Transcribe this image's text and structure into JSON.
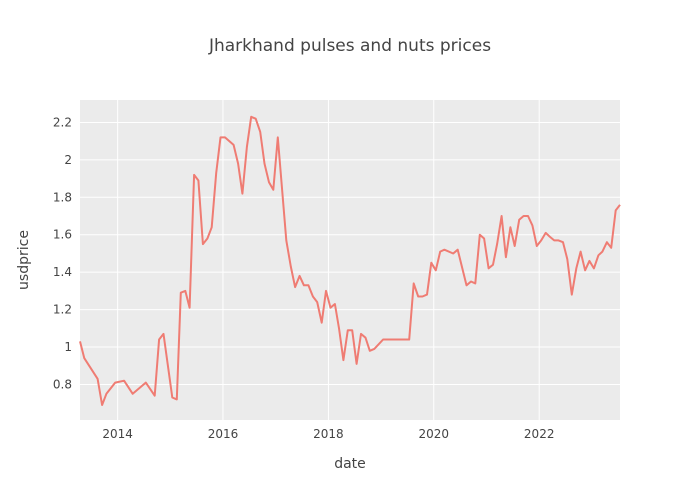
{
  "chart_data": {
    "type": "line",
    "title": "Jharkhand pulses and nuts prices",
    "xlabel": "date",
    "ylabel": "usdprice",
    "xlim": [
      "2013-04-15",
      "2023-07-15"
    ],
    "ylim": [
      0.61,
      2.32
    ],
    "x_ticks": [
      "2014",
      "2016",
      "2018",
      "2020",
      "2022"
    ],
    "y_ticks": [
      "0.8",
      "1",
      "1.2",
      "1.4",
      "1.6",
      "1.8",
      "2",
      "2.2"
    ],
    "grid": true,
    "legend": "none",
    "colors": {
      "line": "#ef7c73",
      "plot_bg": "#ebebeb",
      "grid": "#ffffff"
    },
    "series": [
      {
        "x": [
          "2013-04-15",
          "2013-05-15",
          "2013-08-15",
          "2013-09-15",
          "2013-10-15",
          "2013-12-15",
          "2014-02-15",
          "2014-04-15",
          "2014-07-15",
          "2014-09-15",
          "2014-10-15",
          "2014-11-15",
          "2015-01-15",
          "2015-02-15",
          "2015-03-15",
          "2015-04-15",
          "2015-05-15",
          "2015-06-15",
          "2015-07-15",
          "2015-08-15",
          "2015-09-15",
          "2015-10-15",
          "2015-11-15",
          "2015-12-15",
          "2016-01-15",
          "2016-03-15",
          "2016-04-15",
          "2016-05-15",
          "2016-06-15",
          "2016-07-15",
          "2016-08-15",
          "2016-09-15",
          "2016-10-15",
          "2016-11-15",
          "2016-12-15",
          "2017-01-15",
          "2017-03-15",
          "2017-04-15",
          "2017-05-15",
          "2017-06-15",
          "2017-07-15",
          "2017-08-15",
          "2017-09-15",
          "2017-10-15",
          "2017-11-15",
          "2017-12-15",
          "2018-01-15",
          "2018-02-15",
          "2018-03-15",
          "2018-04-15",
          "2018-05-15",
          "2018-06-15",
          "2018-07-15",
          "2018-08-15",
          "2018-09-15",
          "2018-10-15",
          "2018-11-15",
          "2019-01-15",
          "2019-07-15",
          "2019-08-15",
          "2019-09-15",
          "2019-10-15",
          "2019-11-15",
          "2019-12-15",
          "2020-01-15",
          "2020-02-15",
          "2020-03-15",
          "2020-05-15",
          "2020-06-15",
          "2020-08-15",
          "2020-09-15",
          "2020-10-15",
          "2020-11-15",
          "2020-12-15",
          "2021-01-15",
          "2021-02-15",
          "2021-03-15",
          "2021-04-15",
          "2021-05-15",
          "2021-06-15",
          "2021-07-15",
          "2021-08-15",
          "2021-09-15",
          "2021-10-15",
          "2021-11-15",
          "2021-12-15",
          "2022-01-15",
          "2022-02-15",
          "2022-03-15",
          "2022-04-15",
          "2022-05-15",
          "2022-06-15",
          "2022-07-15",
          "2022-08-15",
          "2022-09-15",
          "2022-10-15",
          "2022-11-15",
          "2022-12-15",
          "2023-01-15",
          "2023-02-15",
          "2023-03-15",
          "2023-04-15",
          "2023-05-15",
          "2023-06-15",
          "2023-07-15"
        ],
        "y": [
          1.03,
          0.94,
          0.83,
          0.69,
          0.75,
          0.81,
          0.82,
          0.75,
          0.81,
          0.74,
          1.04,
          1.07,
          0.73,
          0.72,
          1.29,
          1.3,
          1.21,
          1.92,
          1.89,
          1.55,
          1.58,
          1.64,
          1.93,
          2.12,
          2.12,
          2.08,
          1.98,
          1.82,
          2.07,
          2.23,
          2.22,
          2.15,
          1.98,
          1.88,
          1.84,
          2.12,
          1.57,
          1.43,
          1.32,
          1.38,
          1.33,
          1.33,
          1.27,
          1.24,
          1.13,
          1.3,
          1.21,
          1.23,
          1.1,
          0.93,
          1.09,
          1.09,
          0.91,
          1.07,
          1.05,
          0.98,
          0.99,
          1.04,
          1.04,
          1.34,
          1.27,
          1.27,
          1.28,
          1.45,
          1.41,
          1.51,
          1.52,
          1.5,
          1.52,
          1.33,
          1.35,
          1.34,
          1.6,
          1.58,
          1.42,
          1.44,
          1.55,
          1.7,
          1.48,
          1.64,
          1.54,
          1.68,
          1.7,
          1.7,
          1.65,
          1.54,
          1.57,
          1.61,
          1.59,
          1.57,
          1.57,
          1.56,
          1.47,
          1.28,
          1.42,
          1.51,
          1.41,
          1.46,
          1.42,
          1.49,
          1.51,
          1.56,
          1.53,
          1.73,
          1.76
        ]
      }
    ]
  }
}
